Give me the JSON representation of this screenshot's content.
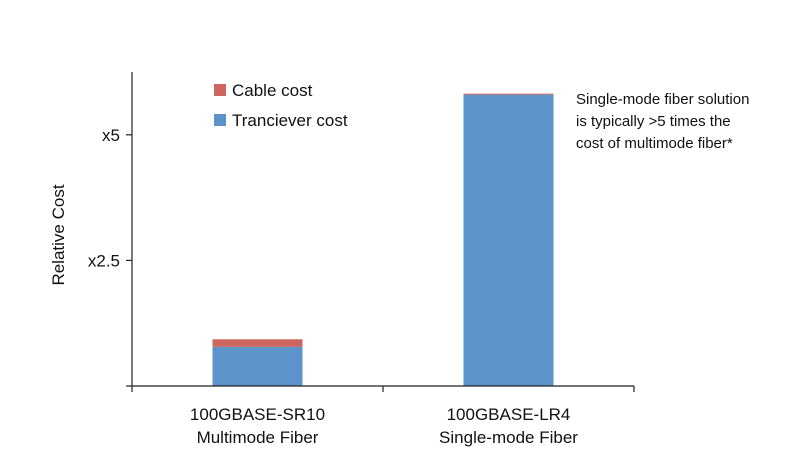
{
  "chart_data": {
    "type": "bar",
    "stacked": true,
    "title": "",
    "xlabel": "",
    "ylabel": "Relative Cost",
    "ylim": [
      0,
      6.25
    ],
    "yticks": [
      {
        "value": 0,
        "label": ""
      },
      {
        "value": 2.5,
        "label": "x2.5"
      },
      {
        "value": 5,
        "label": "x5"
      }
    ],
    "categories": [
      [
        "100GBASE-SR10",
        "Multimode Fiber"
      ],
      [
        "100GBASE-LR4",
        "Single-mode Fiber"
      ]
    ],
    "series": [
      {
        "name": "Tranciever cost",
        "color": "#5b93ca",
        "values": [
          0.78,
          5.8
        ]
      },
      {
        "name": "Cable cost",
        "color": "#cc665e",
        "values": [
          0.15,
          0.02
        ]
      }
    ],
    "legend": {
      "position": "top-left",
      "order": [
        "Cable cost",
        "Tranciever cost"
      ]
    },
    "annotation": [
      "Single-mode fiber solution",
      "is typically >5 times the",
      "cost of multimode fiber*"
    ],
    "grid": false
  }
}
